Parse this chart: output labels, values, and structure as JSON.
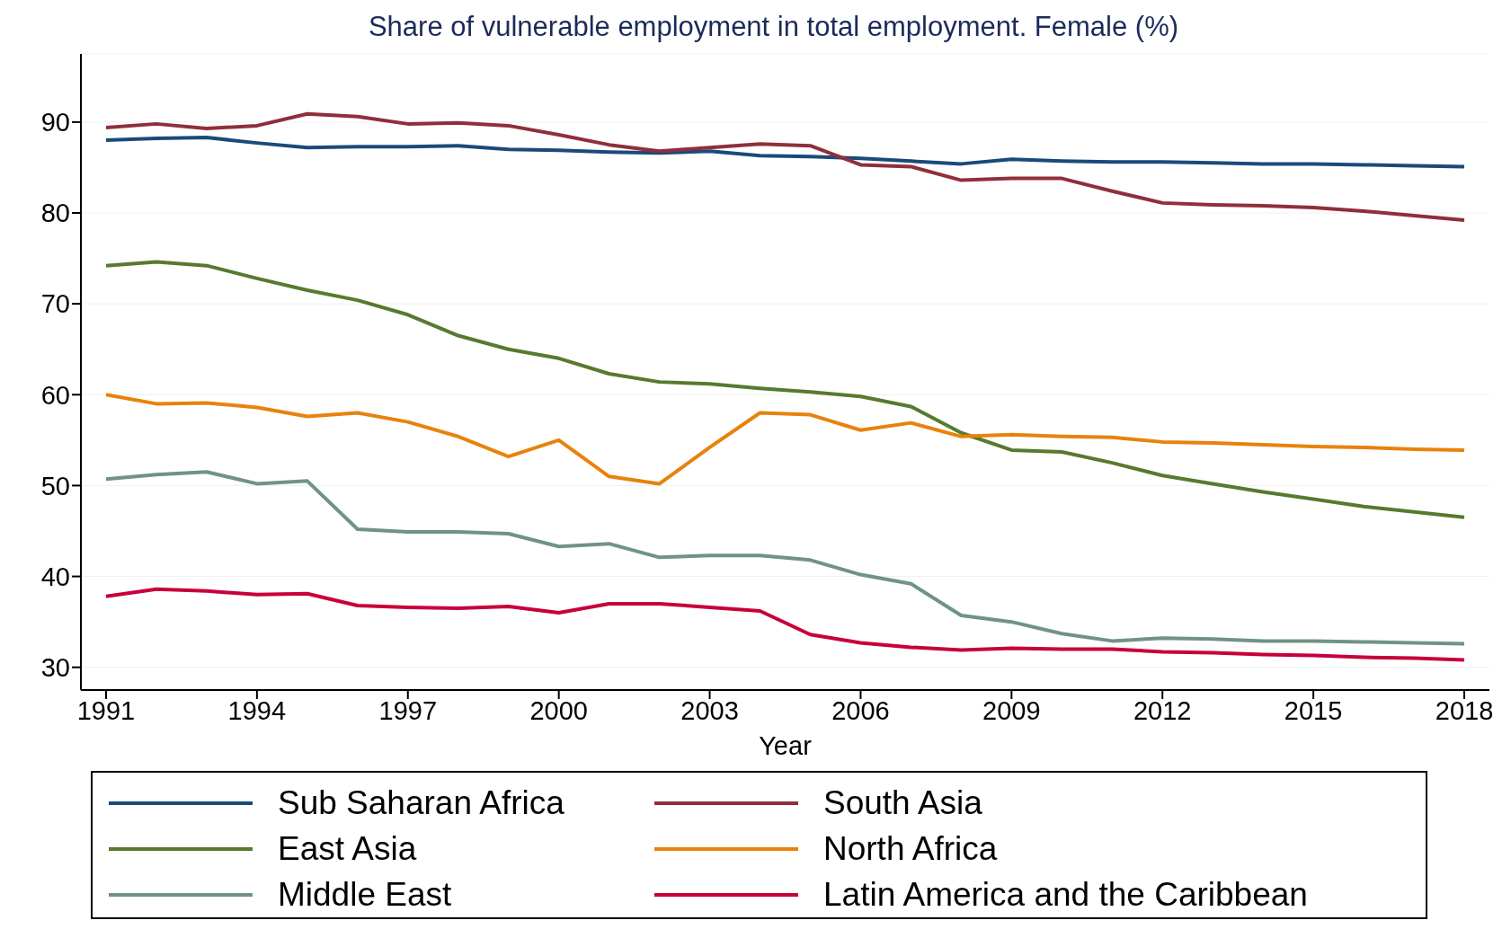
{
  "chart_data": {
    "type": "line",
    "title": "Share of vulnerable employment in total employment. Female (%)",
    "xlabel": "Year",
    "x": [
      1991,
      1992,
      1993,
      1994,
      1995,
      1996,
      1997,
      1998,
      1999,
      2000,
      2001,
      2002,
      2003,
      2004,
      2005,
      2006,
      2007,
      2008,
      2009,
      2010,
      2011,
      2012,
      2013,
      2014,
      2015,
      2016,
      2017,
      2018
    ],
    "xlim": [
      1990.5,
      2018.5
    ],
    "xticks": [
      1991,
      1994,
      1997,
      2000,
      2003,
      2006,
      2009,
      2012,
      2015,
      2018
    ],
    "ylim": [
      27.5,
      97.5
    ],
    "yticks": [
      30,
      40,
      50,
      60,
      70,
      80,
      90
    ],
    "grid": "y",
    "legend": "bottom",
    "marker": "none",
    "line_style": "solid",
    "series": [
      {
        "name": "Sub Saharan Africa",
        "color": "#1a4a7a",
        "values": [
          88,
          88.2,
          88.3,
          87.7,
          87.2,
          87.3,
          87.3,
          87.4,
          87,
          86.9,
          86.7,
          86.6,
          86.8,
          86.3,
          86.2,
          86,
          85.7,
          85.4,
          85.9,
          85.7,
          85.6,
          85.6,
          85.5,
          85.4,
          85.4,
          85.3,
          85.2,
          85.1
        ]
      },
      {
        "name": "South Asia",
        "color": "#8f2f3a",
        "values": [
          89.4,
          89.8,
          89.3,
          89.6,
          90.9,
          90.6,
          89.8,
          89.9,
          89.6,
          88.6,
          87.5,
          86.8,
          87.2,
          87.6,
          87.4,
          85.3,
          85.1,
          83.6,
          83.8,
          83.8,
          82.4,
          81.1,
          80.9,
          80.8,
          80.6,
          80.2,
          79.7,
          79.2
        ]
      },
      {
        "name": "East Asia",
        "color": "#567a2e",
        "values": [
          74.2,
          74.6,
          74.2,
          72.8,
          71.5,
          70.4,
          68.8,
          66.5,
          65,
          64,
          62.3,
          61.4,
          61.2,
          60.7,
          60.3,
          59.8,
          58.7,
          55.8,
          53.9,
          53.7,
          52.5,
          51.1,
          50.2,
          49.3,
          48.5,
          47.7,
          47.1,
          46.5
        ]
      },
      {
        "name": "North Africa",
        "color": "#e8820c",
        "values": [
          60,
          59,
          59.1,
          58.6,
          57.6,
          58,
          57,
          55.4,
          53.2,
          55,
          51,
          50.2,
          54.2,
          58,
          57.8,
          56.1,
          56.9,
          55.4,
          55.6,
          55.4,
          55.3,
          54.8,
          54.7,
          54.5,
          54.3,
          54.2,
          54,
          53.9
        ]
      },
      {
        "name": "Middle East",
        "color": "#6f9385",
        "values": [
          50.7,
          51.2,
          51.5,
          50.2,
          50.5,
          45.2,
          44.9,
          44.9,
          44.7,
          43.3,
          43.6,
          42.1,
          42.3,
          42.3,
          41.8,
          40.2,
          39.2,
          35.7,
          35,
          33.7,
          32.9,
          33.2,
          33.1,
          32.9,
          32.9,
          32.8,
          32.7,
          32.6
        ]
      },
      {
        "name": "Latin America and the Caribbean",
        "color": "#c8003a",
        "values": [
          37.8,
          38.6,
          38.4,
          38,
          38.1,
          36.8,
          36.6,
          36.5,
          36.7,
          36,
          37,
          37,
          36.6,
          36.2,
          33.6,
          32.7,
          32.2,
          31.9,
          32.1,
          32,
          32,
          31.7,
          31.6,
          31.4,
          31.3,
          31.1,
          31,
          30.8
        ]
      }
    ]
  }
}
